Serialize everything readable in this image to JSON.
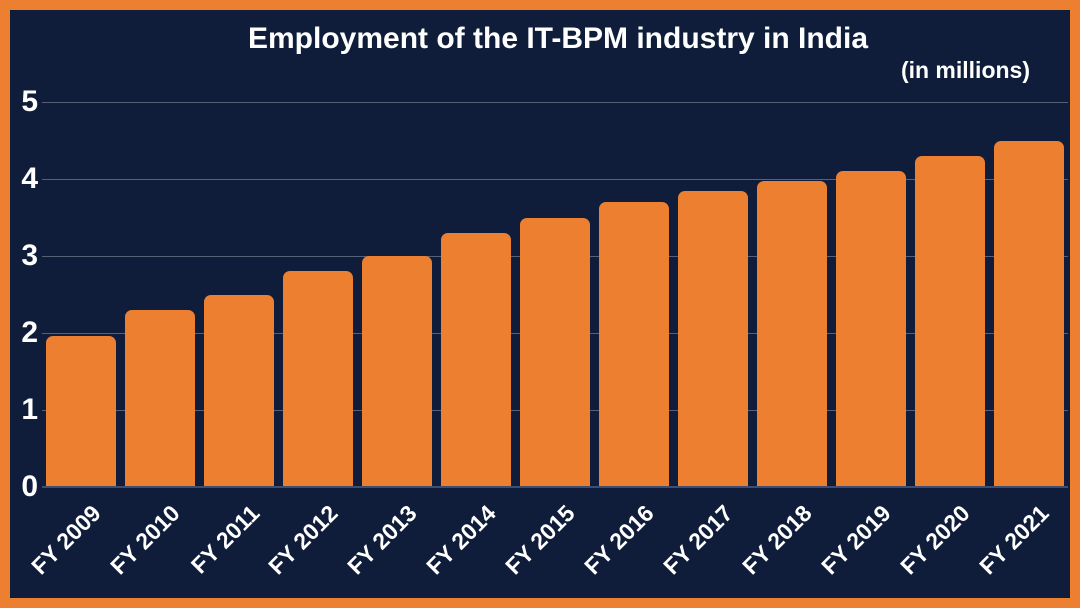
{
  "frame": {
    "border_color": "#ED8030",
    "background_color": "#0F1D3A"
  },
  "chart_data": {
    "type": "bar",
    "title": "Employment of the IT-BPM industry in India",
    "subtitle": "(in millions)",
    "categories": [
      "FY 2009",
      "FY 2010",
      "FY 2011",
      "FY 2012",
      "FY 2013",
      "FY 2014",
      "FY 2015",
      "FY 2016",
      "FY 2017",
      "FY 2018",
      "FY 2019",
      "FY 2020",
      "FY 2021"
    ],
    "values": [
      1.96,
      2.3,
      2.5,
      2.8,
      3.0,
      3.3,
      3.5,
      3.7,
      3.85,
      3.97,
      4.1,
      4.3,
      4.5
    ],
    "xlabel": "",
    "ylabel": "",
    "ylim": [
      0,
      5
    ],
    "y_ticks": [
      0,
      1,
      2,
      3,
      4,
      5
    ],
    "grid": true,
    "legend_position": "none",
    "bar_color": "#EC8030",
    "background_color": "#0F1D3A",
    "grid_color": "rgba(255,255,255,0.30)",
    "axis_line_color": "#3D4E72",
    "text_color": "#FFFFFF"
  }
}
